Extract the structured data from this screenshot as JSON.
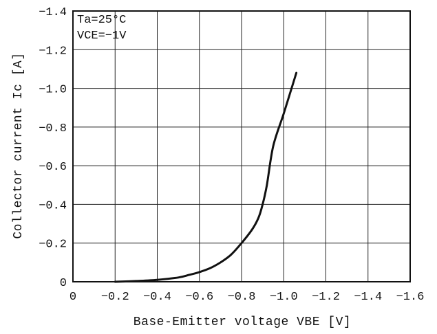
{
  "chart_data": {
    "type": "line",
    "xlabel": "Base-Emitter voltage VBE [V]",
    "ylabel": "Collector current Ic [A]",
    "xlim": [
      0,
      -1.6
    ],
    "ylim": [
      0,
      -1.4
    ],
    "x_ticks": [
      0,
      -0.2,
      -0.4,
      -0.6,
      -0.8,
      -1.0,
      -1.2,
      -1.4,
      -1.6
    ],
    "y_ticks": [
      0,
      -0.2,
      -0.4,
      -0.6,
      -0.8,
      -1.0,
      -1.2,
      -1.4
    ],
    "x_tick_labels": [
      "0",
      "−0.2",
      "−0.4",
      "−0.6",
      "−0.8",
      "−1.0",
      "−1.2",
      "−1.4",
      "−1.6"
    ],
    "y_tick_labels": [
      "0",
      "−0.2",
      "−0.4",
      "−0.6",
      "−0.8",
      "−1.0",
      "−1.2",
      "−1.4"
    ],
    "grid": true,
    "annotations": [
      "Ta=25°C",
      "VCE=−1V"
    ],
    "series": [
      {
        "x": [
          -0.2,
          -0.3,
          -0.4,
          -0.5,
          -0.55,
          -0.6,
          -0.65,
          -0.7,
          -0.75,
          -0.8,
          -0.85,
          -0.88,
          -0.9,
          -0.92,
          -0.95,
          -1.0,
          -1.06
        ],
        "y": [
          0,
          -0.004,
          -0.01,
          -0.022,
          -0.035,
          -0.05,
          -0.07,
          -0.1,
          -0.14,
          -0.2,
          -0.27,
          -0.33,
          -0.4,
          -0.5,
          -0.7,
          -0.87,
          -1.08
        ]
      }
    ]
  }
}
